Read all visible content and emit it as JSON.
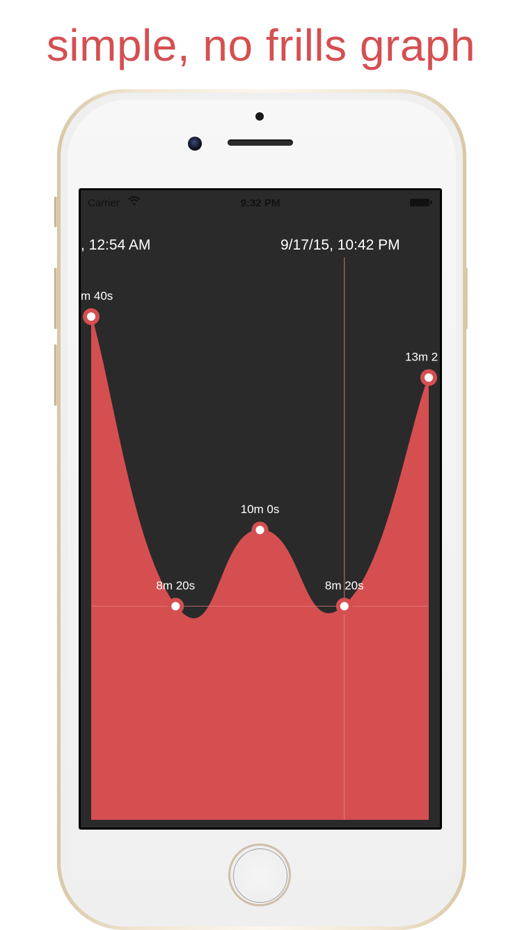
{
  "headline": "simple, no frills graph",
  "status_bar": {
    "carrier": "Carrier",
    "time": "9:32 PM"
  },
  "header": {
    "date_left": ", 12:54 AM",
    "date_right": "9/17/15, 10:42 PM"
  },
  "colors": {
    "accent": "#d54f51",
    "graph_background": "#2a2a2a",
    "headline": "#d54f51",
    "reference_line": "#ea8181"
  },
  "chart_data": {
    "type": "area",
    "x": [
      1,
      2,
      3,
      4,
      5
    ],
    "series": [
      {
        "values": [
          880,
          500,
          600,
          500,
          800
        ],
        "labels": [
          "m 40s",
          "8m 20s",
          "10m 0s",
          "8m 20s",
          "13m 2"
        ]
      }
    ],
    "ylim": [
      0,
      1000
    ],
    "grid": false,
    "baseline_value": 500,
    "selected_index": 3
  },
  "icons": {
    "wifi": "wifi-icon",
    "battery": "battery-icon"
  }
}
